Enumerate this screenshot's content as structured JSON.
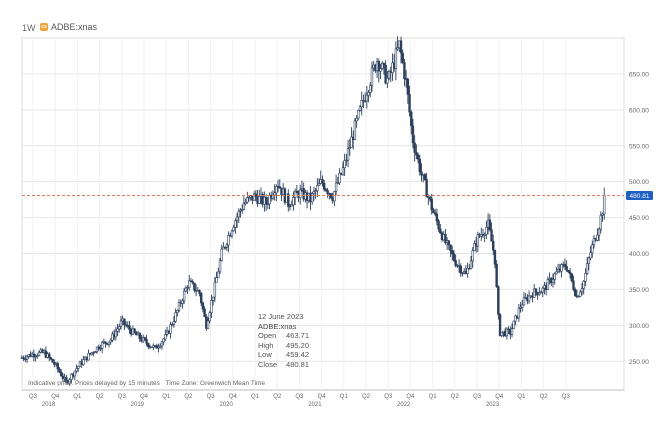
{
  "toolbar": {
    "interval": "1W",
    "symbol_badge": "cs",
    "symbol": "ADBE:xnas"
  },
  "tooltip": {
    "date": "12 June 2023",
    "symbol": "ADBE:xnas",
    "rows": [
      {
        "label": "Open",
        "value": "463.71"
      },
      {
        "label": "High",
        "value": "495.20"
      },
      {
        "label": "Low",
        "value": "459.42"
      },
      {
        "label": "Close",
        "value": "480.81"
      }
    ]
  },
  "footnote": {
    "delay": "Indicative price. Prices delayed by 15 minutes",
    "timezone": "Time Zone: Greenwich Mean Time"
  },
  "colors": {
    "candle": "#2b3f5c",
    "last_price_line": "#e07a5f",
    "last_price_tag": "#1f5fbf",
    "grid": "#e6e6e6"
  },
  "chart_data": {
    "type": "candlestick",
    "title": "",
    "interval": "weekly",
    "last_price": 480.81,
    "last_price_label": "480.81",
    "ylim": [
      210,
      700
    ],
    "y_ticks": [
      250,
      300,
      350,
      400,
      450,
      500,
      550,
      600,
      650
    ],
    "y_tick_labels": [
      "250.00",
      "300.00",
      "350.00",
      "400.00",
      "450.00",
      "500.00",
      "550.00",
      "600.00",
      "650.00"
    ],
    "x_quarter_labels": [
      "Q3",
      "Q4",
      "Q1",
      "Q2",
      "Q3",
      "Q4",
      "Q1",
      "Q2",
      "Q3",
      "Q4",
      "Q1",
      "Q2",
      "Q3",
      "Q4",
      "Q1",
      "Q2",
      "Q3",
      "Q4",
      "Q1",
      "Q2",
      "Q3",
      "Q4",
      "Q1",
      "Q2",
      "Q3"
    ],
    "x_year_labels": [
      {
        "label": "2018",
        "quarter_index": 0
      },
      {
        "label": "2019",
        "quarter_index": 4
      },
      {
        "label": "2020",
        "quarter_index": 8
      },
      {
        "label": "2021",
        "quarter_index": 12
      },
      {
        "label": "2022",
        "quarter_index": 16
      },
      {
        "label": "2023",
        "quarter_index": 20
      }
    ],
    "approx_close_path": [
      {
        "q": 0.0,
        "v": 255
      },
      {
        "q": 0.5,
        "v": 260
      },
      {
        "q": 1.0,
        "v": 262
      },
      {
        "q": 1.5,
        "v": 245
      },
      {
        "q": 2.0,
        "v": 220
      },
      {
        "q": 2.5,
        "v": 242
      },
      {
        "q": 3.0,
        "v": 258
      },
      {
        "q": 3.5,
        "v": 272
      },
      {
        "q": 4.0,
        "v": 280
      },
      {
        "q": 4.5,
        "v": 305
      },
      {
        "q": 5.0,
        "v": 290
      },
      {
        "q": 5.5,
        "v": 278
      },
      {
        "q": 6.0,
        "v": 268
      },
      {
        "q": 6.5,
        "v": 285
      },
      {
        "q": 7.0,
        "v": 320
      },
      {
        "q": 7.5,
        "v": 360
      },
      {
        "q": 8.0,
        "v": 345
      },
      {
        "q": 8.3,
        "v": 300
      },
      {
        "q": 8.7,
        "v": 355
      },
      {
        "q": 9.0,
        "v": 400
      },
      {
        "q": 9.5,
        "v": 440
      },
      {
        "q": 10.0,
        "v": 470
      },
      {
        "q": 10.5,
        "v": 480
      },
      {
        "q": 11.0,
        "v": 470
      },
      {
        "q": 11.5,
        "v": 500
      },
      {
        "q": 12.0,
        "v": 470
      },
      {
        "q": 12.5,
        "v": 485
      },
      {
        "q": 13.0,
        "v": 475
      },
      {
        "q": 13.5,
        "v": 500
      },
      {
        "q": 14.0,
        "v": 480
      },
      {
        "q": 14.5,
        "v": 520
      },
      {
        "q": 15.0,
        "v": 575
      },
      {
        "q": 15.5,
        "v": 625
      },
      {
        "q": 16.0,
        "v": 670
      },
      {
        "q": 16.5,
        "v": 640
      },
      {
        "q": 17.0,
        "v": 690
      },
      {
        "q": 17.3,
        "v": 640
      },
      {
        "q": 17.6,
        "v": 560
      },
      {
        "q": 18.0,
        "v": 510
      },
      {
        "q": 18.5,
        "v": 460
      },
      {
        "q": 19.0,
        "v": 420
      },
      {
        "q": 19.5,
        "v": 390
      },
      {
        "q": 20.0,
        "v": 370
      },
      {
        "q": 20.5,
        "v": 420
      },
      {
        "q": 21.0,
        "v": 440
      },
      {
        "q": 21.3,
        "v": 395
      },
      {
        "q": 21.5,
        "v": 290
      },
      {
        "q": 22.0,
        "v": 290
      },
      {
        "q": 22.5,
        "v": 330
      },
      {
        "q": 23.0,
        "v": 345
      },
      {
        "q": 23.5,
        "v": 350
      },
      {
        "q": 24.0,
        "v": 370
      },
      {
        "q": 24.5,
        "v": 385
      },
      {
        "q": 25.0,
        "v": 340
      },
      {
        "q": 25.3,
        "v": 360
      },
      {
        "q": 25.6,
        "v": 400
      },
      {
        "q": 26.0,
        "v": 440
      },
      {
        "q": 26.3,
        "v": 480.81
      }
    ]
  }
}
